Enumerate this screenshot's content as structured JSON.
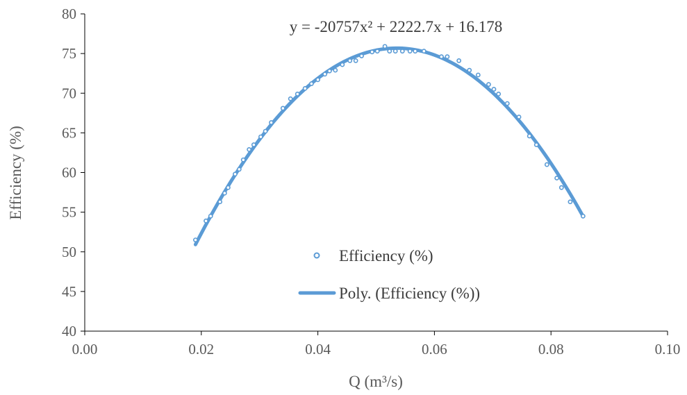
{
  "chart_data": {
    "type": "scatter",
    "title": "",
    "xlabel": "Q (m³/s)",
    "ylabel": "Efficiency (%)",
    "xlim": [
      0,
      0.1
    ],
    "ylim": [
      40,
      80
    ],
    "xticks": [
      "0.00",
      "0.02",
      "0.04",
      "0.06",
      "0.08",
      "0.10"
    ],
    "yticks": [
      "40",
      "45",
      "50",
      "55",
      "60",
      "65",
      "70",
      "75",
      "80"
    ],
    "grid": false,
    "legend_position": "center",
    "colors": {
      "series": "#5b9bd5",
      "axis": "#000000",
      "text": "#595959"
    },
    "trendline": {
      "type": "polynomial",
      "order": 2,
      "name": "Poly. (Efficiency (%))",
      "coefficients": [
        -20757,
        2222.7,
        16.178
      ],
      "equation": "y = -20757x² + 2222.7x + 16.178",
      "x_range": [
        0.019,
        0.0855
      ]
    },
    "series": [
      {
        "name": "Efficiency (%)",
        "marker": "circle-open",
        "points": [
          [
            0.019,
            51.5
          ],
          [
            0.0208,
            53.9
          ],
          [
            0.0216,
            54.5
          ],
          [
            0.0232,
            56.3
          ],
          [
            0.024,
            57.4
          ],
          [
            0.0246,
            58.1
          ],
          [
            0.0258,
            59.8
          ],
          [
            0.0265,
            60.4
          ],
          [
            0.0272,
            61.6
          ],
          [
            0.0282,
            62.9
          ],
          [
            0.029,
            63.5
          ],
          [
            0.0302,
            64.5
          ],
          [
            0.031,
            65.2
          ],
          [
            0.032,
            66.3
          ],
          [
            0.034,
            68.1
          ],
          [
            0.0353,
            69.3
          ],
          [
            0.0365,
            69.9
          ],
          [
            0.0378,
            70.6
          ],
          [
            0.0389,
            71.2
          ],
          [
            0.04,
            71.7
          ],
          [
            0.0412,
            72.4
          ],
          [
            0.042,
            72.8
          ],
          [
            0.043,
            72.9
          ],
          [
            0.0442,
            73.6
          ],
          [
            0.0455,
            74.1
          ],
          [
            0.0465,
            74.1
          ],
          [
            0.0475,
            74.7
          ],
          [
            0.0493,
            75.2
          ],
          [
            0.0502,
            75.3
          ],
          [
            0.0515,
            75.9
          ],
          [
            0.0523,
            75.3
          ],
          [
            0.0533,
            75.3
          ],
          [
            0.0545,
            75.3
          ],
          [
            0.0558,
            75.3
          ],
          [
            0.0567,
            75.3
          ],
          [
            0.0582,
            75.3
          ],
          [
            0.0612,
            74.6
          ],
          [
            0.0622,
            74.6
          ],
          [
            0.0642,
            74.1
          ],
          [
            0.066,
            72.9
          ],
          [
            0.0675,
            72.3
          ],
          [
            0.0693,
            71.1
          ],
          [
            0.0702,
            70.5
          ],
          [
            0.071,
            69.9
          ],
          [
            0.0725,
            68.7
          ],
          [
            0.0745,
            67.0
          ],
          [
            0.0763,
            64.6
          ],
          [
            0.0775,
            63.5
          ],
          [
            0.0793,
            61.0
          ],
          [
            0.081,
            59.3
          ],
          [
            0.0818,
            58.1
          ],
          [
            0.0833,
            56.3
          ],
          [
            0.0855,
            54.5
          ]
        ]
      }
    ]
  }
}
